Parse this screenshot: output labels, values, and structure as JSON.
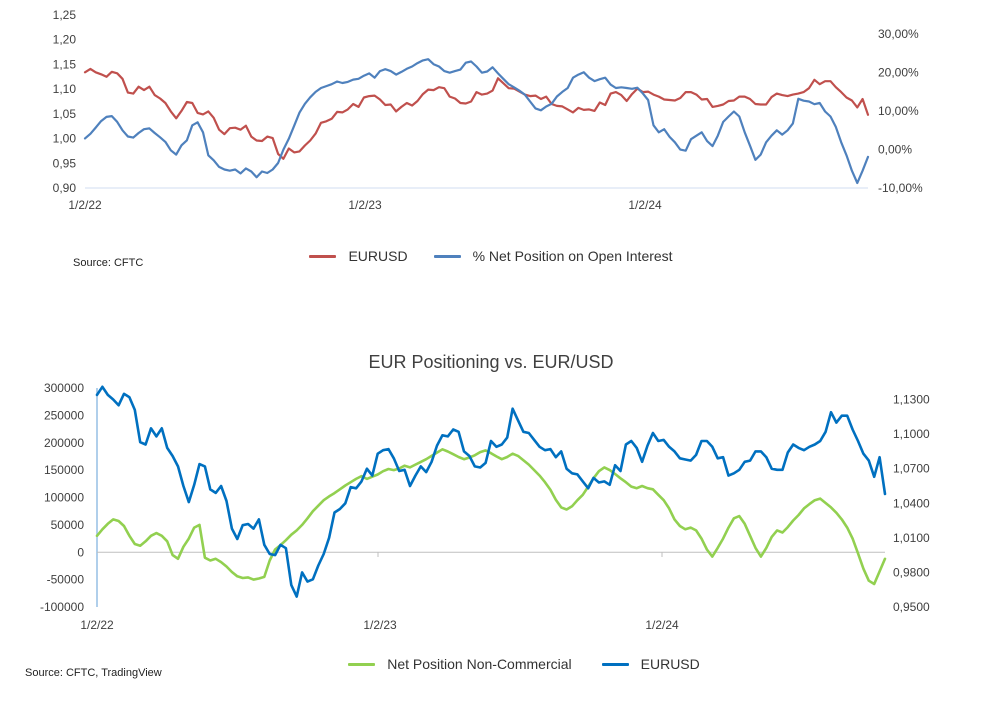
{
  "chart_data": [
    {
      "type": "line",
      "title": "",
      "source": "Source: CFTC",
      "x_tick_labels": [
        "1/2/22",
        "1/2/23",
        "1/2/24"
      ],
      "left_tick_labels": [
        "1,25",
        "1,20",
        "1,15",
        "1,10",
        "1,05",
        "1,00",
        "0,95",
        "0,90"
      ],
      "left_tick_values": [
        1.25,
        1.2,
        1.15,
        1.1,
        1.05,
        1.0,
        0.95,
        0.9
      ],
      "right_tick_labels": [
        "30,00%",
        "20,00%",
        "10,00%",
        "0,00%",
        "-10,00%"
      ],
      "right_tick_values": [
        30,
        20,
        10,
        0,
        -10
      ],
      "left_ylim": [
        0.9,
        1.25
      ],
      "right_ylim": [
        -10,
        35
      ],
      "legend_position": "bottom",
      "legend": [
        {
          "label": "EURUSD",
          "color": "#c0504d"
        },
        {
          "label": "% Net Position on Open Interest",
          "color": "#4f81bd"
        }
      ],
      "series": [
        {
          "name": "EURUSD",
          "axis": "left",
          "color": "#c0504d",
          "values": [
            1.134,
            1.141,
            1.134,
            1.13,
            1.125,
            1.135,
            1.132,
            1.121,
            1.093,
            1.091,
            1.105,
            1.098,
            1.105,
            1.088,
            1.081,
            1.072,
            1.055,
            1.041,
            1.056,
            1.074,
            1.072,
            1.052,
            1.049,
            1.055,
            1.042,
            1.018,
            1.009,
            1.021,
            1.022,
            1.018,
            1.026,
            1.004,
            0.996,
            0.995,
            1.004,
            1.001,
            0.969,
            0.959,
            0.98,
            0.972,
            0.974,
            0.986,
            0.996,
            1.01,
            1.032,
            1.035,
            1.04,
            1.054,
            1.053,
            1.059,
            1.07,
            1.064,
            1.083,
            1.086,
            1.087,
            1.079,
            1.068,
            1.069,
            1.055,
            1.064,
            1.072,
            1.067,
            1.076,
            1.09,
            1.099,
            1.098,
            1.104,
            1.102,
            1.085,
            1.081,
            1.072,
            1.071,
            1.075,
            1.094,
            1.089,
            1.091,
            1.097,
            1.122,
            1.112,
            1.102,
            1.101,
            1.095,
            1.089,
            1.086,
            1.087,
            1.08,
            1.085,
            1.07,
            1.066,
            1.065,
            1.059,
            1.053,
            1.062,
            1.058,
            1.059,
            1.056,
            1.073,
            1.068,
            1.091,
            1.094,
            1.088,
            1.076,
            1.09,
            1.101,
            1.094,
            1.095,
            1.089,
            1.085,
            1.079,
            1.078,
            1.077,
            1.082,
            1.094,
            1.094,
            1.089,
            1.079,
            1.08,
            1.064,
            1.066,
            1.069,
            1.076,
            1.077,
            1.085,
            1.085,
            1.08,
            1.07,
            1.069,
            1.069,
            1.084,
            1.091,
            1.088,
            1.086,
            1.089,
            1.091,
            1.094,
            1.102,
            1.119,
            1.11,
            1.116,
            1.116,
            1.104,
            1.094,
            1.083,
            1.077,
            1.063,
            1.08,
            1.048
          ]
        },
        {
          "name": "% Net Position on Open Interest",
          "axis": "right",
          "color": "#4f81bd",
          "values": [
            2.9,
            4.1,
            5.7,
            7.4,
            8.5,
            8.7,
            7.2,
            5.0,
            3.4,
            3.1,
            4.3,
            5.3,
            5.5,
            4.3,
            3.2,
            2.0,
            -0.2,
            -1.3,
            1.1,
            2.4,
            6.3,
            7.1,
            4.5,
            -1.5,
            -2.8,
            -4.5,
            -5.2,
            -5.5,
            -5.2,
            -6.2,
            -4.9,
            -5.7,
            -7.2,
            -5.7,
            -6.1,
            -5.2,
            -3.5,
            0.0,
            2.8,
            6.2,
            9.6,
            11.9,
            13.6,
            15.0,
            16.0,
            16.5,
            17.0,
            17.7,
            17.3,
            17.6,
            18.2,
            18.4,
            19.2,
            19.8,
            18.7,
            20.4,
            20.9,
            20.4,
            19.5,
            20.2,
            21.0,
            21.6,
            22.5,
            23.2,
            23.5,
            22.2,
            21.6,
            20.4,
            20.0,
            20.4,
            20.8,
            22.6,
            22.9,
            21.6,
            20.0,
            20.3,
            21.4,
            19.8,
            18.4,
            17.0,
            16.2,
            15.3,
            14.3,
            12.5,
            10.7,
            10.2,
            11.2,
            11.9,
            13.8,
            15.0,
            16.0,
            18.7,
            19.5,
            20.1,
            18.7,
            17.8,
            18.3,
            18.7,
            16.9,
            16.0,
            16.2,
            16.0,
            15.8,
            16.1,
            14.6,
            12.9,
            6.3,
            4.5,
            5.3,
            3.3,
            1.9,
            0.0,
            -0.3,
            2.7,
            3.6,
            4.5,
            2.2,
            0.9,
            3.6,
            7.2,
            8.6,
            9.9,
            8.6,
            4.5,
            1.0,
            -2.7,
            -1.3,
            1.9,
            3.6,
            5.0,
            3.9,
            5.0,
            6.8,
            13.2,
            12.7,
            12.5,
            11.8,
            12.1,
            9.9,
            8.6,
            5.9,
            1.9,
            -1.5,
            -5.5,
            -8.7,
            -5.5,
            -1.9
          ]
        }
      ]
    },
    {
      "type": "line",
      "title": "EUR Positioning vs. EUR/USD",
      "source": "Source: CFTC, TradingView",
      "x_tick_labels": [
        "1/2/22",
        "1/2/23",
        "1/2/24"
      ],
      "left_tick_labels": [
        "300000",
        "250000",
        "200000",
        "150000",
        "100000",
        "50000",
        "0",
        "-50000",
        "-100000"
      ],
      "left_tick_values": [
        300000,
        250000,
        200000,
        150000,
        100000,
        50000,
        0,
        -50000,
        -100000
      ],
      "right_tick_labels": [
        "1,1300",
        "1,1000",
        "1,0700",
        "1,0400",
        "1,0100",
        "0,9800",
        "0,9500"
      ],
      "right_tick_values": [
        1.13,
        1.1,
        1.07,
        1.04,
        1.01,
        0.98,
        0.95
      ],
      "left_ylim": [
        -100000,
        300000
      ],
      "right_ylim": [
        0.95,
        1.14
      ],
      "legend_position": "bottom",
      "legend": [
        {
          "label": "Net Position Non-Commercial",
          "color": "#92d050"
        },
        {
          "label": "EURUSD",
          "color": "#0070c0"
        }
      ],
      "series": [
        {
          "name": "Net Position Non-Commercial",
          "axis": "left",
          "color": "#92d050",
          "values": [
            30000,
            42000,
            52000,
            60000,
            57000,
            48000,
            30000,
            15000,
            12000,
            20000,
            30000,
            35000,
            30000,
            20000,
            -5000,
            -12000,
            10000,
            25000,
            45000,
            50000,
            -10000,
            -15000,
            -12000,
            -18000,
            -26000,
            -36000,
            -44000,
            -47000,
            -46000,
            -50000,
            -48000,
            -45000,
            -15000,
            5000,
            13000,
            22000,
            32000,
            40000,
            50000,
            62000,
            75000,
            85000,
            95000,
            102000,
            108000,
            115000,
            122000,
            128000,
            134000,
            139000,
            134000,
            138000,
            142000,
            148000,
            152000,
            150000,
            153000,
            158000,
            155000,
            160000,
            165000,
            170000,
            176000,
            182000,
            188000,
            184000,
            179000,
            174000,
            170000,
            173000,
            177000,
            183000,
            186000,
            181000,
            175000,
            170000,
            174000,
            180000,
            176000,
            168000,
            160000,
            150000,
            140000,
            128000,
            114000,
            96000,
            82000,
            78000,
            84000,
            95000,
            105000,
            120000,
            135000,
            148000,
            155000,
            150000,
            143000,
            135000,
            128000,
            120000,
            117000,
            121000,
            117000,
            115000,
            105000,
            95000,
            80000,
            60000,
            48000,
            42000,
            45000,
            40000,
            25000,
            5000,
            -8000,
            8000,
            25000,
            45000,
            62000,
            66000,
            52000,
            30000,
            8000,
            -8000,
            8000,
            28000,
            40000,
            36000,
            46000,
            58000,
            68000,
            80000,
            88000,
            95000,
            98000,
            90000,
            82000,
            72000,
            60000,
            45000,
            25000,
            -2000,
            -30000,
            -52000,
            -58000,
            -35000,
            -12000
          ]
        },
        {
          "name": "EURUSD",
          "axis": "right",
          "color": "#0070c0",
          "values": [
            1.134,
            1.141,
            1.134,
            1.13,
            1.125,
            1.135,
            1.132,
            1.121,
            1.093,
            1.091,
            1.105,
            1.098,
            1.105,
            1.088,
            1.081,
            1.072,
            1.055,
            1.041,
            1.056,
            1.074,
            1.072,
            1.052,
            1.049,
            1.055,
            1.042,
            1.018,
            1.009,
            1.021,
            1.022,
            1.018,
            1.026,
            1.004,
            0.996,
            0.995,
            1.004,
            1.001,
            0.969,
            0.959,
            0.98,
            0.972,
            0.974,
            0.986,
            0.996,
            1.01,
            1.032,
            1.035,
            1.04,
            1.054,
            1.053,
            1.059,
            1.07,
            1.064,
            1.083,
            1.086,
            1.087,
            1.079,
            1.068,
            1.069,
            1.055,
            1.064,
            1.072,
            1.067,
            1.076,
            1.09,
            1.099,
            1.098,
            1.104,
            1.102,
            1.085,
            1.081,
            1.072,
            1.071,
            1.075,
            1.094,
            1.089,
            1.091,
            1.097,
            1.122,
            1.112,
            1.102,
            1.101,
            1.095,
            1.089,
            1.086,
            1.087,
            1.08,
            1.085,
            1.07,
            1.066,
            1.065,
            1.059,
            1.053,
            1.062,
            1.058,
            1.059,
            1.056,
            1.073,
            1.068,
            1.091,
            1.094,
            1.088,
            1.076,
            1.09,
            1.101,
            1.094,
            1.095,
            1.089,
            1.085,
            1.079,
            1.078,
            1.077,
            1.082,
            1.094,
            1.094,
            1.089,
            1.079,
            1.08,
            1.064,
            1.066,
            1.069,
            1.076,
            1.077,
            1.085,
            1.085,
            1.08,
            1.07,
            1.069,
            1.069,
            1.084,
            1.091,
            1.088,
            1.086,
            1.089,
            1.091,
            1.094,
            1.102,
            1.119,
            1.11,
            1.116,
            1.116,
            1.104,
            1.094,
            1.083,
            1.077,
            1.063,
            1.08,
            1.048
          ]
        }
      ]
    }
  ]
}
